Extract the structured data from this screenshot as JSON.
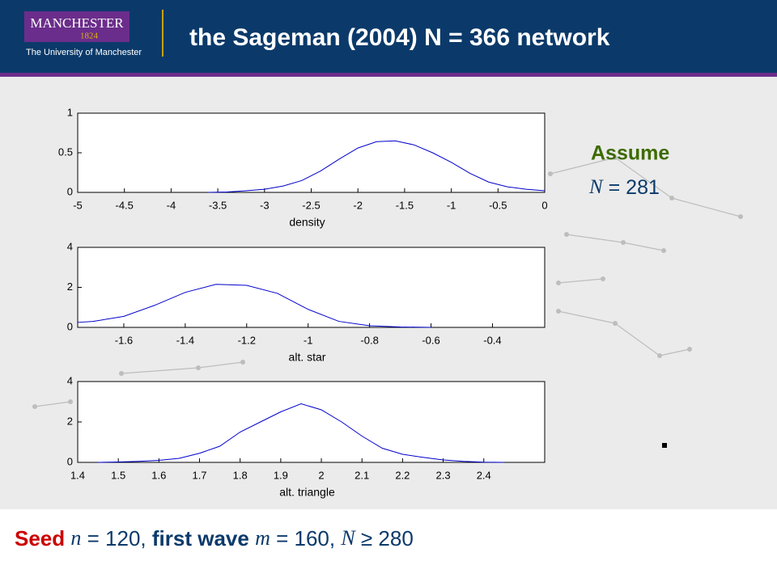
{
  "header": {
    "logo_name": "MANCHESTER",
    "logo_year": "1824",
    "logo_subtitle": "The University of Manchester",
    "title": "the Sageman (2004) N = 366 network"
  },
  "assume": {
    "title": "Assume",
    "variable": "N",
    "equals": "= 281"
  },
  "footer": {
    "parts": [
      "Seed",
      "n",
      "= 120,",
      "first wave",
      "m",
      "= 160,",
      "N",
      "≥ 280"
    ]
  },
  "chart_data": [
    {
      "type": "line",
      "x_label": "density",
      "xlim": [
        -5,
        0
      ],
      "ylim": [
        0,
        1
      ],
      "xticks": [
        -5,
        -4.5,
        -4,
        -3.5,
        -3,
        -2.5,
        -2,
        -1.5,
        -1,
        -0.5,
        0
      ],
      "yticks": [
        0,
        0.5,
        1
      ],
      "color": "#0000cc",
      "x": [
        -3.6,
        -3.4,
        -3.2,
        -3.0,
        -2.8,
        -2.6,
        -2.4,
        -2.2,
        -2.0,
        -1.8,
        -1.6,
        -1.4,
        -1.2,
        -1.0,
        -0.8,
        -0.6,
        -0.4,
        -0.2,
        0
      ],
      "values": [
        0,
        0.005,
        0.02,
        0.04,
        0.08,
        0.15,
        0.27,
        0.42,
        0.56,
        0.64,
        0.65,
        0.6,
        0.5,
        0.38,
        0.24,
        0.13,
        0.07,
        0.04,
        0.02
      ]
    },
    {
      "type": "line",
      "x_label": "alt. star",
      "xlim": [
        -1.75,
        -0.23
      ],
      "ylim": [
        0,
        4
      ],
      "xticks": [
        -1.6,
        -1.4,
        -1.2,
        -1,
        -0.8,
        -0.6,
        -0.4
      ],
      "yticks": [
        0,
        2,
        4
      ],
      "color": "#0000cc",
      "x": [
        -1.75,
        -1.7,
        -1.6,
        -1.5,
        -1.4,
        -1.3,
        -1.2,
        -1.1,
        -1.0,
        -0.9,
        -0.8,
        -0.7,
        -0.6
      ],
      "values": [
        0.25,
        0.3,
        0.55,
        1.1,
        1.75,
        2.15,
        2.1,
        1.7,
        0.9,
        0.3,
        0.08,
        0.02,
        0
      ]
    },
    {
      "type": "line",
      "x_label": "alt. triangle",
      "xlim": [
        1.4,
        2.55
      ],
      "ylim": [
        0,
        4
      ],
      "xticks": [
        1.4,
        1.5,
        1.6,
        1.7,
        1.8,
        1.9,
        2,
        2.1,
        2.2,
        2.3,
        2.4
      ],
      "yticks": [
        0,
        2,
        4
      ],
      "color": "#0000cc",
      "x": [
        1.45,
        1.5,
        1.55,
        1.6,
        1.65,
        1.7,
        1.75,
        1.8,
        1.85,
        1.9,
        1.95,
        2.0,
        2.05,
        2.1,
        2.15,
        2.2,
        2.25,
        2.3,
        2.35,
        2.4,
        2.45
      ],
      "values": [
        0,
        0.02,
        0.05,
        0.1,
        0.2,
        0.45,
        0.8,
        1.5,
        2.0,
        2.5,
        2.9,
        2.6,
        2.0,
        1.3,
        0.7,
        0.4,
        0.25,
        0.12,
        0.05,
        0.01,
        0
      ]
    }
  ]
}
